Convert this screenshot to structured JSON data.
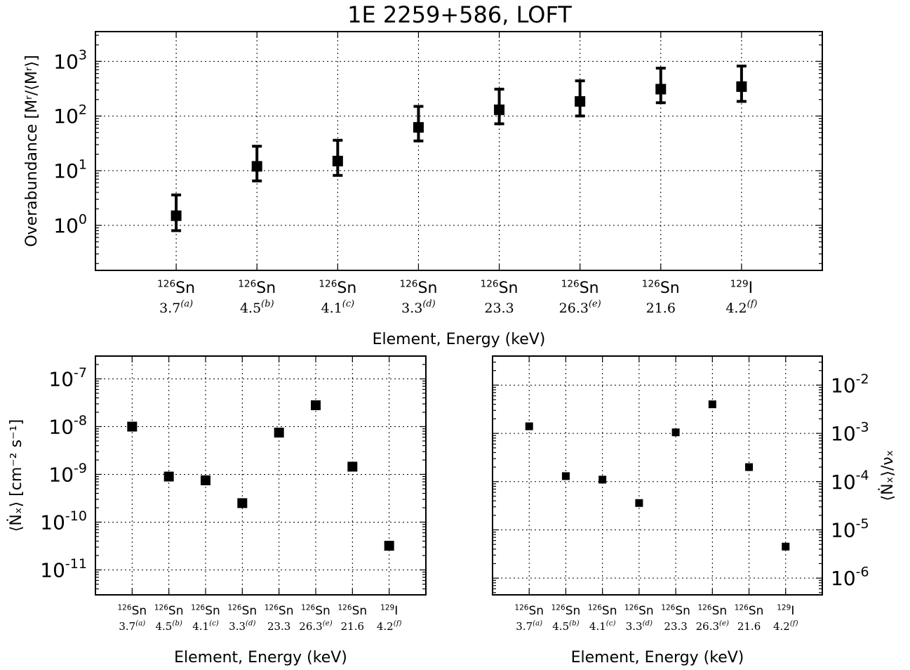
{
  "figure_title": "1E 2259+586, LOFT",
  "chart_data": [
    {
      "type": "scatter",
      "title": "1E 2259+586, LOFT",
      "xlabel": "Element, Energy (keV)",
      "ylabel": "Overabundance [Mʳ/⟨Mʳ⟩]",
      "yscale": "log",
      "ylim": [
        0.15,
        3500
      ],
      "yticks": [
        {
          "value": 1,
          "base": "10",
          "exp": "0"
        },
        {
          "value": 10,
          "base": "10",
          "exp": "1"
        },
        {
          "value": 100,
          "base": "10",
          "exp": "2"
        },
        {
          "value": 1000,
          "base": "10",
          "exp": "3"
        }
      ],
      "grid": true,
      "categories": [
        {
          "mass": "126",
          "element": "Sn",
          "energy": "3.7",
          "note": "(a)"
        },
        {
          "mass": "126",
          "element": "Sn",
          "energy": "4.5",
          "note": "(b)"
        },
        {
          "mass": "126",
          "element": "Sn",
          "energy": "4.1",
          "note": "(c)"
        },
        {
          "mass": "126",
          "element": "Sn",
          "energy": "3.3",
          "note": "(d)"
        },
        {
          "mass": "126",
          "element": "Sn",
          "energy": "23.3",
          "note": ""
        },
        {
          "mass": "126",
          "element": "Sn",
          "energy": "26.3",
          "note": "(e)"
        },
        {
          "mass": "126",
          "element": "Sn",
          "energy": "21.6",
          "note": ""
        },
        {
          "mass": "129",
          "element": "I",
          "energy": "4.2",
          "note": "(f)"
        }
      ],
      "values": [
        1.5,
        12,
        15,
        62,
        130,
        185,
        310,
        345
      ],
      "err_low": [
        0.8,
        6.5,
        8.2,
        35,
        72,
        100,
        175,
        185
      ],
      "err_high": [
        3.6,
        28,
        36,
        150,
        310,
        440,
        750,
        820
      ]
    },
    {
      "type": "scatter",
      "xlabel": "Element, Energy (keV)",
      "ylabel": "⟨Ṅₓ⟩ [cm⁻² s⁻¹]",
      "yscale": "log",
      "ylim": [
        3e-12,
        3e-07
      ],
      "yticks": [
        {
          "value": 1e-11,
          "base": "10",
          "exp": "-11"
        },
        {
          "value": 1e-10,
          "base": "10",
          "exp": "-10"
        },
        {
          "value": 1e-09,
          "base": "10",
          "exp": "-9"
        },
        {
          "value": 1e-08,
          "base": "10",
          "exp": "-8"
        },
        {
          "value": 1e-07,
          "base": "10",
          "exp": "-7"
        }
      ],
      "grid": true,
      "values": [
        1e-08,
        9e-10,
        7.5e-10,
        2.5e-10,
        7.5e-09,
        2.8e-08,
        1.45e-09,
        3.2e-11
      ]
    },
    {
      "type": "scatter",
      "xlabel": "Element, Energy (keV)",
      "ylabel": "⟨Ṅₓ⟩/νₓ",
      "yscale": "log",
      "yaxis_side": "right",
      "ylim": [
        4.5e-07,
        0.04
      ],
      "yticks": [
        {
          "value": 1e-06,
          "base": "10",
          "exp": "-6"
        },
        {
          "value": 1e-05,
          "base": "10",
          "exp": "-5"
        },
        {
          "value": 0.0001,
          "base": "10",
          "exp": "-4"
        },
        {
          "value": 0.001,
          "base": "10",
          "exp": "-3"
        },
        {
          "value": 0.01,
          "base": "10",
          "exp": "-2"
        }
      ],
      "grid": true,
      "values": [
        0.0014,
        0.00013,
        0.00011,
        3.6e-05,
        0.00105,
        0.004,
        0.0002,
        4.5e-06
      ]
    }
  ]
}
